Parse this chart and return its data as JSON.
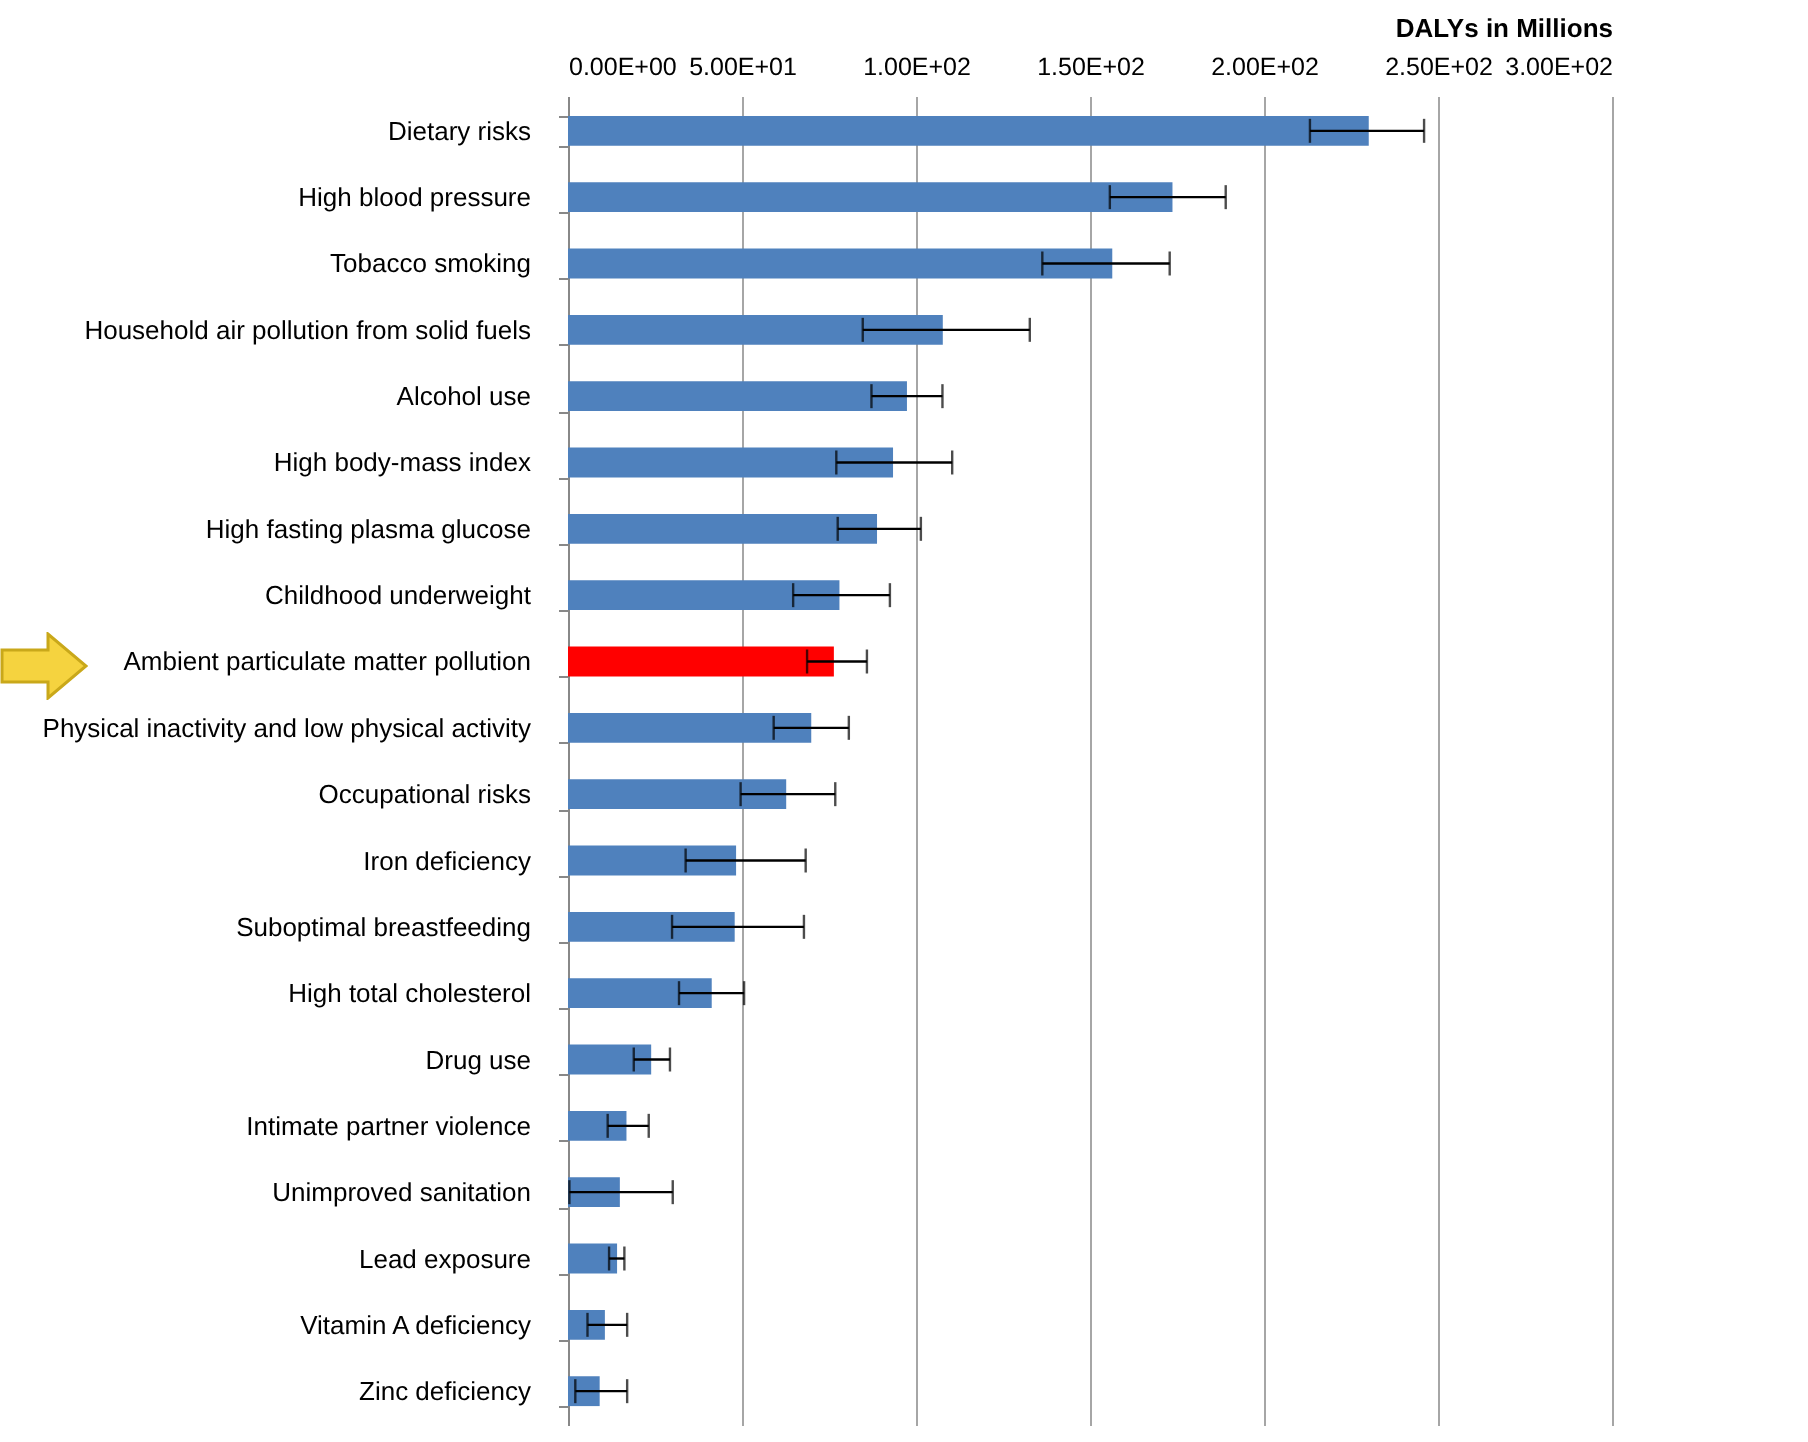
{
  "chart_data": {
    "type": "bar",
    "orientation": "horizontal",
    "xlabel": "DALYs in Millions",
    "categories": [
      "Dietary risks",
      "High blood pressure",
      "Tobacco smoking",
      "Household air pollution from solid fuels",
      "Alcohol use",
      "High body-mass index",
      "High fasting plasma glucose",
      "Childhood underweight",
      "Ambient particulate matter pollution",
      "Physical inactivity and low physical activity",
      "Occupational risks",
      "Iron deficiency",
      "Suboptimal breastfeeding",
      "High total cholesterol",
      "Drug use",
      "Intimate partner violence",
      "Unimproved sanitation",
      "Lead exposure",
      "Vitamin A deficiency",
      "Zinc deficiency"
    ],
    "values": [
      230.1,
      173.7,
      156.4,
      107.7,
      97.4,
      93.4,
      88.8,
      78.0,
      76.4,
      69.9,
      62.7,
      48.3,
      47.9,
      41.3,
      23.9,
      16.8,
      14.9,
      14.1,
      10.6,
      9.1
    ],
    "errors": [
      [
        213.2,
        246.0
      ],
      [
        155.7,
        189.0
      ],
      [
        136.3,
        172.9
      ],
      [
        84.7,
        132.7
      ],
      [
        87.2,
        107.6
      ],
      [
        77.1,
        110.4
      ],
      [
        77.5,
        101.4
      ],
      [
        64.7,
        92.5
      ],
      [
        68.7,
        85.9
      ],
      [
        59.1,
        80.7
      ],
      [
        49.6,
        76.8
      ],
      [
        33.8,
        68.3
      ],
      [
        29.9,
        67.8
      ],
      [
        31.9,
        50.6
      ],
      [
        18.9,
        29.3
      ],
      [
        11.4,
        23.2
      ],
      [
        0.4,
        30.1
      ],
      [
        11.8,
        16.2
      ],
      [
        5.6,
        17.0
      ],
      [
        2.1,
        17.0
      ]
    ],
    "colors": [
      "#4f81bd",
      "#4f81bd",
      "#4f81bd",
      "#4f81bd",
      "#4f81bd",
      "#4f81bd",
      "#4f81bd",
      "#4f81bd",
      "#ff0000",
      "#4f81bd",
      "#4f81bd",
      "#4f81bd",
      "#4f81bd",
      "#4f81bd",
      "#4f81bd",
      "#4f81bd",
      "#4f81bd",
      "#4f81bd",
      "#4f81bd",
      "#4f81bd"
    ],
    "xlim": [
      0,
      300
    ],
    "xticks": [
      {
        "value": 0,
        "label": "0.00E+00"
      },
      {
        "value": 50,
        "label": "5.00E+01"
      },
      {
        "value": 100,
        "label": "1.00E+02"
      },
      {
        "value": 150,
        "label": "1.50E+02"
      },
      {
        "value": 200,
        "label": "2.00E+02"
      },
      {
        "value": 250,
        "label": "2.50E+02"
      },
      {
        "value": 300,
        "label": "3.00E+02"
      }
    ],
    "grid": "x"
  }
}
